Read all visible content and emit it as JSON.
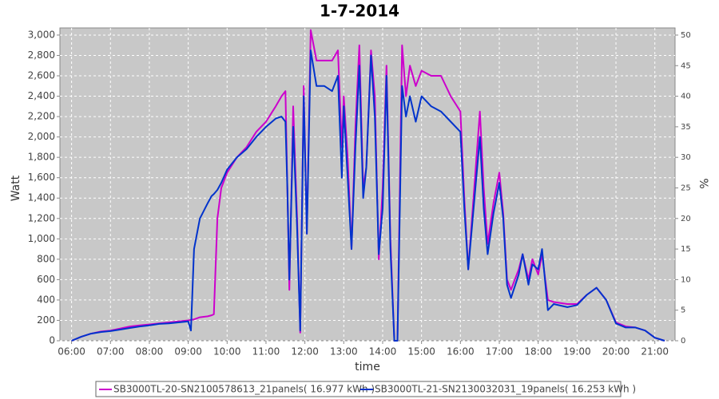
{
  "chart_data": {
    "type": "line",
    "title": "1-7-2014",
    "x_label": "time",
    "y_label": "Watt",
    "y2_label": "%",
    "x": [
      6.0,
      6.25,
      6.5,
      6.75,
      7.0,
      7.25,
      7.5,
      7.75,
      8.0,
      8.25,
      8.5,
      8.75,
      9.0,
      9.07,
      9.15,
      9.3,
      9.5,
      9.6,
      9.66,
      9.75,
      9.85,
      10.0,
      10.25,
      10.5,
      10.75,
      11.0,
      11.25,
      11.4,
      11.5,
      11.55,
      11.6,
      11.7,
      11.8,
      11.88,
      11.97,
      12.05,
      12.15,
      12.3,
      12.5,
      12.7,
      12.85,
      12.95,
      13.0,
      13.1,
      13.2,
      13.3,
      13.4,
      13.5,
      13.58,
      13.7,
      13.8,
      13.9,
      14.0,
      14.1,
      14.2,
      14.3,
      14.38,
      14.5,
      14.6,
      14.7,
      14.85,
      15.0,
      15.25,
      15.5,
      15.75,
      16.0,
      16.1,
      16.2,
      16.5,
      16.6,
      16.7,
      16.85,
      17.0,
      17.1,
      17.2,
      17.3,
      17.5,
      17.6,
      17.75,
      17.85,
      18.0,
      18.1,
      18.25,
      18.4,
      18.75,
      19.0,
      19.25,
      19.5,
      19.75,
      20.0,
      20.25,
      20.5,
      20.75,
      21.0,
      21.25
    ],
    "series": [
      {
        "name": "SB3000TL-20-SN2100578613_21panels( 16.977 kWh )",
        "color": "#cc00cc",
        "values": [
          0,
          40,
          70,
          90,
          100,
          120,
          140,
          150,
          160,
          170,
          180,
          190,
          200,
          205,
          210,
          230,
          240,
          250,
          260,
          1200,
          1500,
          1650,
          1800,
          1900,
          2050,
          2150,
          2300,
          2400,
          2450,
          1500,
          500,
          2300,
          1200,
          80,
          2500,
          1050,
          3050,
          2750,
          2750,
          2750,
          2850,
          1900,
          2400,
          1800,
          900,
          2100,
          2900,
          1500,
          1700,
          2850,
          2400,
          800,
          1500,
          2700,
          1000,
          0,
          0,
          2900,
          2400,
          2700,
          2500,
          2650,
          2600,
          2600,
          2400,
          2250,
          1400,
          700,
          2250,
          1500,
          950,
          1350,
          1650,
          1250,
          600,
          500,
          700,
          850,
          600,
          800,
          650,
          850,
          400,
          380,
          360,
          360,
          450,
          520,
          400,
          180,
          140,
          130,
          100,
          30,
          0
        ]
      },
      {
        "name": "SB3000TL-21-SN2130032031_19panels( 16.253 kWh )",
        "color": "#0033cc",
        "values": [
          0,
          40,
          70,
          85,
          95,
          110,
          125,
          140,
          150,
          165,
          170,
          180,
          190,
          100,
          900,
          1200,
          1350,
          1420,
          1440,
          1480,
          1550,
          1680,
          1800,
          1880,
          2000,
          2100,
          2180,
          2200,
          2150,
          1500,
          600,
          2100,
          1100,
          100,
          2400,
          1050,
          2850,
          2500,
          2500,
          2450,
          2600,
          1600,
          2300,
          1600,
          900,
          1900,
          2700,
          1400,
          1700,
          2800,
          2200,
          850,
          1300,
          2600,
          900,
          0,
          0,
          2500,
          2200,
          2400,
          2150,
          2400,
          2300,
          2250,
          2150,
          2050,
          1300,
          700,
          2000,
          1300,
          850,
          1250,
          1550,
          1200,
          550,
          420,
          650,
          850,
          550,
          750,
          700,
          900,
          300,
          360,
          330,
          350,
          450,
          520,
          400,
          170,
          130,
          130,
          100,
          30,
          0
        ]
      }
    ],
    "xlim": [
      5.7,
      21.52
    ],
    "xticks": [
      {
        "value": 6,
        "label": "06:00"
      },
      {
        "value": 7,
        "label": "07:00"
      },
      {
        "value": 8,
        "label": "08:00"
      },
      {
        "value": 9,
        "label": "09:00"
      },
      {
        "value": 10,
        "label": "10:00"
      },
      {
        "value": 11,
        "label": "11:00"
      },
      {
        "value": 12,
        "label": "12:00"
      },
      {
        "value": 13,
        "label": "13:00"
      },
      {
        "value": 14,
        "label": "14:00"
      },
      {
        "value": 15,
        "label": "15:00"
      },
      {
        "value": 16,
        "label": "16:00"
      },
      {
        "value": 17,
        "label": "17:00"
      },
      {
        "value": 18,
        "label": "18:00"
      },
      {
        "value": 19,
        "label": "19:00"
      },
      {
        "value": 20,
        "label": "20:00"
      },
      {
        "value": 21,
        "label": "21:00"
      }
    ],
    "ylim": [
      0,
      3070
    ],
    "yticks": [
      0,
      200,
      400,
      600,
      800,
      {
        "value": 1000,
        "label": "1,000"
      },
      {
        "value": 1200,
        "label": "1,200"
      },
      {
        "value": 1400,
        "label": "1,400"
      },
      {
        "value": 1600,
        "label": "1,600"
      },
      {
        "value": 1800,
        "label": "1,800"
      },
      {
        "value": 2000,
        "label": "2,000"
      },
      {
        "value": 2200,
        "label": "2,200"
      },
      {
        "value": 2400,
        "label": "2,400"
      },
      {
        "value": 2600,
        "label": "2,600"
      },
      {
        "value": 2800,
        "label": "2,800"
      },
      {
        "value": 3000,
        "label": "3,000"
      }
    ],
    "y2lim": [
      0,
      51.17
    ],
    "y2ticks": [
      0,
      5,
      10,
      15,
      20,
      25,
      30,
      35,
      40,
      45,
      50
    ],
    "grid": true
  }
}
